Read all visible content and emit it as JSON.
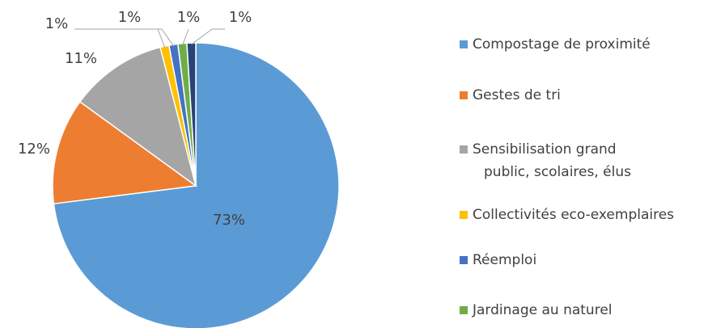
{
  "chart_data": {
    "type": "pie",
    "categories": [
      "Compostage de proximité",
      "Gestes de tri",
      "Sensibilisation grand public, scolaires, élus",
      "Collectivités eco-exemplaires",
      "Réemploi",
      "Jardinage au naturel",
      null
    ],
    "values": [
      73,
      12,
      11,
      1,
      1,
      1,
      1
    ],
    "value_labels": [
      "73%",
      "12%",
      "11%",
      "1%",
      "1%",
      "1%",
      "1%"
    ],
    "colors": [
      "#5b9bd5",
      "#ed7d31",
      "#a5a5a5",
      "#ffc000",
      "#4472c4",
      "#70ad47",
      "#264478"
    ],
    "legend": "right"
  }
}
